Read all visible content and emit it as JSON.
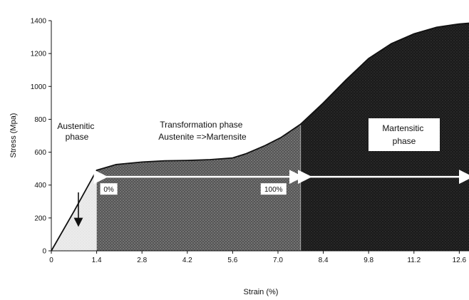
{
  "chart_data": {
    "type": "area",
    "title": "",
    "xlabel": "Strain (%)",
    "ylabel": "Stress (Mpa)",
    "xlim": [
      0,
      12.9
    ],
    "ylim": [
      0,
      1400
    ],
    "x_ticks": [
      0,
      1.4,
      2.8,
      4.2,
      5.6,
      7.0,
      8.4,
      9.8,
      11.2,
      12.6
    ],
    "x_tick_labels": [
      "0",
      "1.4",
      "2.8",
      "4.2",
      "5.6",
      "7.0",
      "8.4",
      "9.8",
      "11.2",
      "12.6"
    ],
    "y_ticks": [
      0,
      200,
      400,
      600,
      800,
      1000,
      1200,
      1400
    ],
    "curve": {
      "x": [
        0,
        0.7,
        1.4,
        2.0,
        2.8,
        3.5,
        4.2,
        4.9,
        5.6,
        6.0,
        6.6,
        7.1,
        7.7,
        8.4,
        9.1,
        9.8,
        10.5,
        11.2,
        11.9,
        12.6,
        12.9
      ],
      "y": [
        0,
        240,
        490,
        525,
        540,
        548,
        550,
        555,
        565,
        590,
        640,
        690,
        770,
        900,
        1040,
        1170,
        1260,
        1320,
        1360,
        1380,
        1385
      ]
    },
    "regions": [
      {
        "name": "austenitic",
        "x_start": 0,
        "x_end": 1.4,
        "color": "#e6e6e6"
      },
      {
        "name": "transformation",
        "x_start": 1.4,
        "x_end": 7.7,
        "color": "#5a5a5a"
      },
      {
        "name": "martensitic",
        "x_start": 7.7,
        "x_end": 12.9,
        "color": "#1c1c1c"
      }
    ],
    "annotations": {
      "austenitic": [
        "Austenitic",
        "phase"
      ],
      "transformation": [
        "Transformation phase",
        "Austenite =>Martensite"
      ],
      "martensitic": [
        "Martensitic",
        "phase"
      ],
      "pct_start": "0%",
      "pct_end": "100%"
    },
    "arrow_stress": 450
  }
}
